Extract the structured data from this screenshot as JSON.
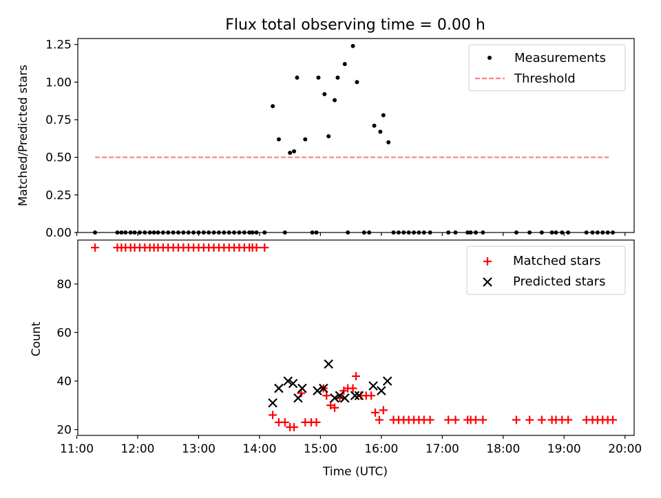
{
  "title": "Flux total observing time = 0.00 h",
  "colors": {
    "measure": "#000000",
    "threshold": "#ff8080",
    "matched": "#ff0000",
    "predicted": "#000000"
  },
  "chart_data": [
    {
      "type": "scatter",
      "ylabel": "Matched/Predicted stars",
      "ylim": [
        0,
        1.29
      ],
      "xlim": [
        "11:01",
        "20:09"
      ],
      "yticks": [
        "0.00",
        "0.25",
        "0.50",
        "0.75",
        "1.00",
        "1.25"
      ],
      "legend": [
        "Measurements",
        "Threshold"
      ],
      "legend_position": "top-right",
      "threshold": {
        "name": "Threshold",
        "value": 0.5,
        "x": [
          "11:18",
          "19:44"
        ]
      },
      "series": [
        {
          "name": "Measurements",
          "points": [
            [
              "11:18",
              0
            ],
            [
              "11:40",
              0
            ],
            [
              "11:44",
              0
            ],
            [
              "11:48",
              0
            ],
            [
              "11:53",
              0
            ],
            [
              "11:57",
              0
            ],
            [
              "12:02",
              0
            ],
            [
              "12:07",
              0
            ],
            [
              "12:12",
              0
            ],
            [
              "12:16",
              0
            ],
            [
              "12:20",
              0
            ],
            [
              "12:25",
              0
            ],
            [
              "12:30",
              0
            ],
            [
              "12:35",
              0
            ],
            [
              "12:40",
              0
            ],
            [
              "12:45",
              0
            ],
            [
              "12:50",
              0
            ],
            [
              "12:55",
              0
            ],
            [
              "13:00",
              0
            ],
            [
              "13:05",
              0
            ],
            [
              "13:10",
              0
            ],
            [
              "13:15",
              0
            ],
            [
              "13:20",
              0
            ],
            [
              "13:25",
              0
            ],
            [
              "13:30",
              0
            ],
            [
              "13:35",
              0
            ],
            [
              "13:40",
              0
            ],
            [
              "13:45",
              0
            ],
            [
              "13:50",
              0
            ],
            [
              "13:53",
              0
            ],
            [
              "13:57",
              0
            ],
            [
              "14:05",
              0
            ],
            [
              "14:13",
              0.84
            ],
            [
              "14:19",
              0.62
            ],
            [
              "14:25",
              0
            ],
            [
              "14:30",
              0.53
            ],
            [
              "14:34",
              0.54
            ],
            [
              "14:37",
              1.03
            ],
            [
              "14:45",
              0.62
            ],
            [
              "14:52",
              0
            ],
            [
              "14:56",
              0
            ],
            [
              "14:58",
              1.03
            ],
            [
              "15:04",
              0.92
            ],
            [
              "15:08",
              0.64
            ],
            [
              "15:14",
              0.88
            ],
            [
              "15:17",
              1.03
            ],
            [
              "15:24",
              1.12
            ],
            [
              "15:27",
              0
            ],
            [
              "15:32",
              1.24
            ],
            [
              "15:36",
              1.0
            ],
            [
              "15:43",
              0
            ],
            [
              "15:48",
              0
            ],
            [
              "15:53",
              0.71
            ],
            [
              "15:59",
              0.67
            ],
            [
              "16:02",
              0.78
            ],
            [
              "16:07",
              0.6
            ],
            [
              "16:12",
              0
            ],
            [
              "16:17",
              0
            ],
            [
              "16:22",
              0
            ],
            [
              "16:27",
              0
            ],
            [
              "16:32",
              0
            ],
            [
              "16:37",
              0
            ],
            [
              "16:42",
              0
            ],
            [
              "16:48",
              0
            ],
            [
              "17:06",
              0
            ],
            [
              "17:13",
              0
            ],
            [
              "17:25",
              0
            ],
            [
              "17:28",
              0
            ],
            [
              "17:33",
              0
            ],
            [
              "17:40",
              0
            ],
            [
              "18:13",
              0
            ],
            [
              "18:26",
              0
            ],
            [
              "18:38",
              0
            ],
            [
              "18:48",
              0
            ],
            [
              "18:52",
              0
            ],
            [
              "18:58",
              0
            ],
            [
              "19:04",
              0
            ],
            [
              "19:22",
              0
            ],
            [
              "19:28",
              0
            ],
            [
              "19:33",
              0
            ],
            [
              "19:38",
              0
            ],
            [
              "19:43",
              0
            ],
            [
              "19:48",
              0
            ]
          ]
        }
      ]
    },
    {
      "type": "scatter",
      "xlabel": "Time (UTC)",
      "ylabel": "Count",
      "ylim": [
        17.6,
        98.1
      ],
      "xlim": [
        "11:01",
        "20:09"
      ],
      "xticks": [
        "11:00",
        "12:00",
        "13:00",
        "14:00",
        "15:00",
        "16:00",
        "17:00",
        "18:00",
        "19:00",
        "20:00"
      ],
      "yticks": [
        "20",
        "40",
        "60",
        "80"
      ],
      "legend": [
        "Matched stars",
        "Predicted stars"
      ],
      "legend_position": "top-right",
      "series": [
        {
          "name": "Matched stars",
          "marker": "+",
          "points": [
            [
              "11:18",
              95
            ],
            [
              "11:40",
              95
            ],
            [
              "11:44",
              95
            ],
            [
              "11:48",
              95
            ],
            [
              "11:53",
              95
            ],
            [
              "11:57",
              95
            ],
            [
              "12:02",
              95
            ],
            [
              "12:07",
              95
            ],
            [
              "12:12",
              95
            ],
            [
              "12:16",
              95
            ],
            [
              "12:20",
              95
            ],
            [
              "12:25",
              95
            ],
            [
              "12:30",
              95
            ],
            [
              "12:35",
              95
            ],
            [
              "12:40",
              95
            ],
            [
              "12:45",
              95
            ],
            [
              "12:50",
              95
            ],
            [
              "12:55",
              95
            ],
            [
              "13:00",
              95
            ],
            [
              "13:05",
              95
            ],
            [
              "13:10",
              95
            ],
            [
              "13:15",
              95
            ],
            [
              "13:20",
              95
            ],
            [
              "13:25",
              95
            ],
            [
              "13:30",
              95
            ],
            [
              "13:35",
              95
            ],
            [
              "13:40",
              95
            ],
            [
              "13:45",
              95
            ],
            [
              "13:50",
              95
            ],
            [
              "13:53",
              95
            ],
            [
              "13:57",
              95
            ],
            [
              "14:05",
              95
            ],
            [
              "14:13",
              26
            ],
            [
              "14:19",
              23
            ],
            [
              "14:25",
              23
            ],
            [
              "14:30",
              21
            ],
            [
              "14:34",
              21
            ],
            [
              "14:41",
              35
            ],
            [
              "14:45",
              23
            ],
            [
              "14:51",
              23
            ],
            [
              "14:56",
              23
            ],
            [
              "15:03",
              37
            ],
            [
              "15:06",
              34
            ],
            [
              "15:10",
              30
            ],
            [
              "15:14",
              29
            ],
            [
              "15:19",
              33
            ],
            [
              "15:23",
              36
            ],
            [
              "15:27",
              37
            ],
            [
              "15:32",
              37
            ],
            [
              "15:35",
              42
            ],
            [
              "15:40",
              34
            ],
            [
              "15:45",
              34
            ],
            [
              "15:50",
              34
            ],
            [
              "15:54",
              27
            ],
            [
              "15:58",
              24
            ],
            [
              "16:02",
              28
            ],
            [
              "16:12",
              24
            ],
            [
              "16:17",
              24
            ],
            [
              "16:22",
              24
            ],
            [
              "16:27",
              24
            ],
            [
              "16:32",
              24
            ],
            [
              "16:37",
              24
            ],
            [
              "16:42",
              24
            ],
            [
              "16:48",
              24
            ],
            [
              "17:06",
              24
            ],
            [
              "17:13",
              24
            ],
            [
              "17:25",
              24
            ],
            [
              "17:28",
              24
            ],
            [
              "17:33",
              24
            ],
            [
              "17:40",
              24
            ],
            [
              "18:13",
              24
            ],
            [
              "18:26",
              24
            ],
            [
              "18:38",
              24
            ],
            [
              "18:48",
              24
            ],
            [
              "18:52",
              24
            ],
            [
              "18:58",
              24
            ],
            [
              "19:04",
              24
            ],
            [
              "19:22",
              24
            ],
            [
              "19:28",
              24
            ],
            [
              "19:33",
              24
            ],
            [
              "19:38",
              24
            ],
            [
              "19:43",
              24
            ],
            [
              "19:48",
              24
            ]
          ]
        },
        {
          "name": "Predicted stars",
          "marker": "x",
          "points": [
            [
              "14:13",
              31
            ],
            [
              "14:19",
              37
            ],
            [
              "14:28",
              40
            ],
            [
              "14:33",
              39
            ],
            [
              "14:38",
              33
            ],
            [
              "14:42",
              37
            ],
            [
              "14:57",
              36
            ],
            [
              "15:03",
              37
            ],
            [
              "15:08",
              47
            ],
            [
              "15:14",
              33
            ],
            [
              "15:19",
              34
            ],
            [
              "15:24",
              33
            ],
            [
              "15:34",
              34
            ],
            [
              "15:38",
              34
            ],
            [
              "15:52",
              38
            ],
            [
              "16:00",
              36
            ],
            [
              "16:06",
              40
            ]
          ]
        }
      ]
    }
  ]
}
